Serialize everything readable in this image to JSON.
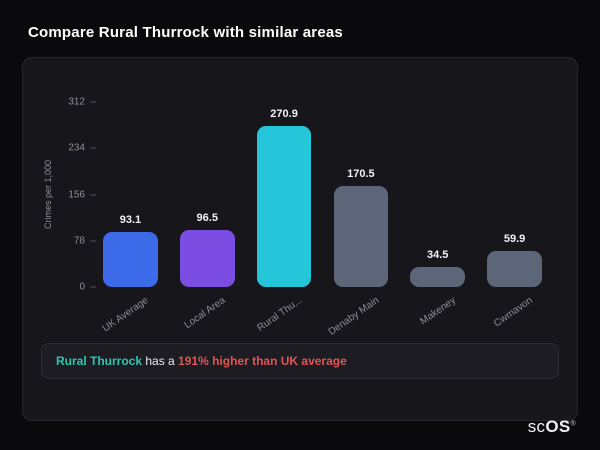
{
  "title": "Compare Rural Thurrock with similar areas",
  "chart_data": {
    "type": "bar",
    "categories": [
      "UK Average",
      "Local Area",
      "Rural Thu...",
      "Denaby Main",
      "Makeney",
      "Cwmavon"
    ],
    "values": [
      93.1,
      96.5,
      270.9,
      170.5,
      34.5,
      59.9
    ],
    "value_labels": [
      "93.1",
      "96.5",
      "270.9",
      "170.5",
      "34.5",
      "59.9"
    ],
    "bar_colors": [
      "#3c6ae8",
      "#7b4de2",
      "#25c5da",
      "#5d6678",
      "#5d6678",
      "#5d6678"
    ],
    "title": "",
    "xlabel": "",
    "ylabel": "Crimes per 1,000",
    "ylim": [
      0,
      312
    ],
    "yticks": [
      0,
      78,
      156,
      234,
      312
    ],
    "grid": false,
    "legend": false,
    "x_label_rotation_deg": -35
  },
  "note": {
    "area": "Rural Thurrock",
    "middle": " has a ",
    "stat": "191% higher than UK average",
    "area_color": "#2cc7ae",
    "stat_color": "#e05555"
  },
  "logo": {
    "part1": "sc",
    "part2": "OS",
    "reg": "®"
  },
  "colors": {
    "page_bg": "#0a0a0c",
    "card_bg": "#16161b",
    "card_border": "#26262d",
    "axis_text": "#8d8d98",
    "value_text": "#f2f2f6",
    "title_text": "#ffffff"
  }
}
